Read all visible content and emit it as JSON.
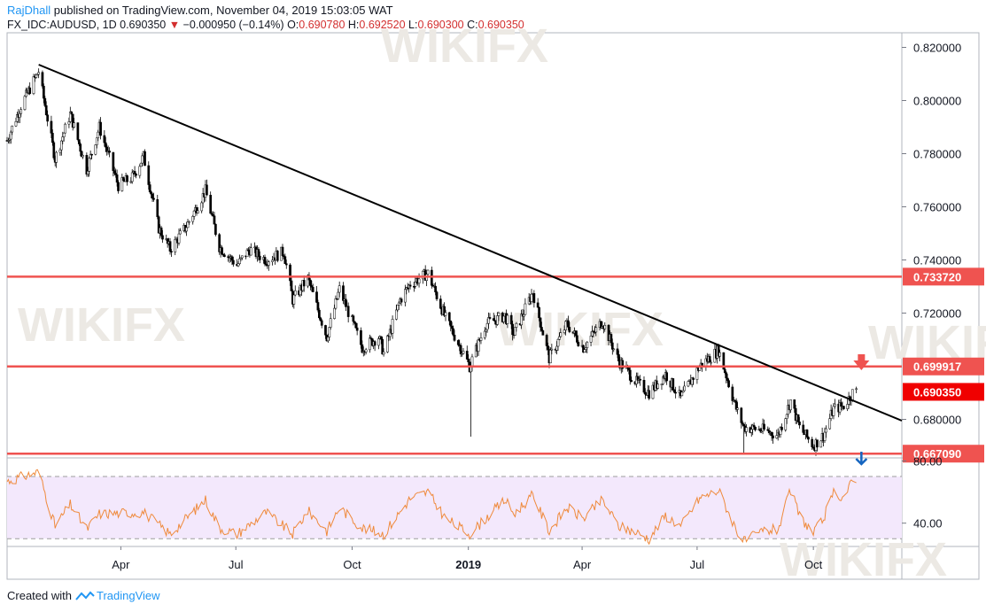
{
  "header": {
    "author": "RajDhall",
    "published": "published on TradingView.com, November 04, 2019 15:03:05 WAT",
    "symbol": "FX_IDC:AUDUSD, 1D",
    "last": "0.690350",
    "change_arrow": "▼",
    "change": "−0.000950 (−0.14%)",
    "o_label": "O:",
    "o": "0.690780",
    "h_label": "H:",
    "h": "0.692520",
    "l_label": "L:",
    "l": "0.690300",
    "c_label": "C:",
    "c": "0.690350"
  },
  "footer": {
    "created_with": "Created with",
    "brand": "TradingView"
  },
  "watermark": "WikiFX",
  "colors": {
    "up": "#ffffff",
    "down": "#000000",
    "wick": "#000000",
    "level_line": "#ef5350",
    "trendline": "#000000",
    "rsi_line": "#ef8a3c",
    "rsi_band": "#f3e8fc",
    "axis_text": "#131722",
    "price_tag": "#ef5350",
    "current_tag": "#f00000",
    "arrow_down_red": "#ef5350",
    "arrow_down_blue": "#1565c0"
  },
  "chart_data": {
    "type": "candlestick",
    "symbol": "FX_IDC:AUDUSD",
    "interval": "1D",
    "x_tick_labels": [
      "Apr",
      "Jul",
      "Oct",
      "2019",
      "Apr",
      "Jul",
      "Oct"
    ],
    "x_tick_dates": [
      "2018-04-01",
      "2018-07-01",
      "2018-10-01",
      "2019-01-01",
      "2019-04-01",
      "2019-07-01",
      "2019-10-01"
    ],
    "x_range": [
      "2018-01-01",
      "2019-12-10"
    ],
    "price_axis": {
      "ticks": [
        "0.820000",
        "0.800000",
        "0.780000",
        "0.760000",
        "0.740000",
        "0.720000",
        "0.680000"
      ],
      "range": [
        0.6655,
        0.8255
      ]
    },
    "horizontal_levels": [
      {
        "price": 0.73372,
        "label": "0.733720"
      },
      {
        "price": 0.699917,
        "label": "0.699917"
      },
      {
        "price": 0.66709,
        "label": "0.667090"
      }
    ],
    "current_price_tag": {
      "price": 0.69035,
      "label": "0.690350"
    },
    "trendline": {
      "start": {
        "date": "2018-01-26",
        "price": 0.8135
      },
      "end": {
        "date": "2019-12-10",
        "price": 0.6795
      }
    },
    "markers": [
      {
        "kind": "arrow-down",
        "pane": "price",
        "date": "2019-11-08",
        "price": 0.7005,
        "color": "red"
      },
      {
        "kind": "arrow-down",
        "pane": "rsi",
        "date": "2019-11-08",
        "value": 78,
        "color": "blue"
      }
    ],
    "price_path": [
      [
        "2018-01-01",
        0.785
      ],
      [
        "2018-01-12",
        0.798
      ],
      [
        "2018-01-26",
        0.811
      ],
      [
        "2018-02-08",
        0.778
      ],
      [
        "2018-02-20",
        0.795
      ],
      [
        "2018-03-05",
        0.774
      ],
      [
        "2018-03-15",
        0.79
      ],
      [
        "2018-03-30",
        0.768
      ],
      [
        "2018-04-10",
        0.771
      ],
      [
        "2018-04-19",
        0.779
      ],
      [
        "2018-05-01",
        0.752
      ],
      [
        "2018-05-10",
        0.744
      ],
      [
        "2018-05-22",
        0.752
      ],
      [
        "2018-06-07",
        0.766
      ],
      [
        "2018-06-18",
        0.745
      ],
      [
        "2018-07-02",
        0.738
      ],
      [
        "2018-07-12",
        0.744
      ],
      [
        "2018-07-25",
        0.74
      ],
      [
        "2018-08-08",
        0.743
      ],
      [
        "2018-08-15",
        0.725
      ],
      [
        "2018-08-27",
        0.733
      ],
      [
        "2018-09-11",
        0.711
      ],
      [
        "2018-09-21",
        0.729
      ],
      [
        "2018-10-09",
        0.707
      ],
      [
        "2018-10-22",
        0.711
      ],
      [
        "2018-10-26",
        0.705
      ],
      [
        "2018-11-08",
        0.725
      ],
      [
        "2018-11-16",
        0.731
      ],
      [
        "2018-11-30",
        0.735
      ],
      [
        "2018-12-14",
        0.718
      ],
      [
        "2018-12-28",
        0.705
      ],
      [
        "2019-01-02",
        0.7
      ],
      [
        "2019-01-15",
        0.716
      ],
      [
        "2019-01-30",
        0.719
      ],
      [
        "2019-02-06",
        0.712
      ],
      [
        "2019-02-21",
        0.728
      ],
      [
        "2019-03-06",
        0.703
      ],
      [
        "2019-03-20",
        0.716
      ],
      [
        "2019-04-02",
        0.707
      ],
      [
        "2019-04-17",
        0.717
      ],
      [
        "2019-04-30",
        0.702
      ],
      [
        "2019-05-14",
        0.694
      ],
      [
        "2019-05-24",
        0.69
      ],
      [
        "2019-06-06",
        0.697
      ],
      [
        "2019-06-18",
        0.688
      ],
      [
        "2019-07-03",
        0.7
      ],
      [
        "2019-07-18",
        0.706
      ],
      [
        "2019-08-01",
        0.684
      ],
      [
        "2019-08-07",
        0.677
      ],
      [
        "2019-08-22",
        0.676
      ],
      [
        "2019-09-03",
        0.674
      ],
      [
        "2019-09-13",
        0.687
      ],
      [
        "2019-09-20",
        0.677
      ],
      [
        "2019-10-01",
        0.67
      ],
      [
        "2019-10-09",
        0.674
      ],
      [
        "2019-10-17",
        0.684
      ],
      [
        "2019-10-25",
        0.685
      ],
      [
        "2019-11-01",
        0.69
      ],
      [
        "2019-11-04",
        0.6904
      ]
    ],
    "price_spikes": [
      {
        "date": "2019-01-03",
        "low": 0.6735
      },
      {
        "date": "2019-08-07",
        "low": 0.6675
      }
    ],
    "rsi": {
      "axis_ticks": [
        "80.00",
        "40.00"
      ],
      "range": [
        25,
        82
      ],
      "band": [
        30,
        70
      ],
      "path": [
        [
          "2018-01-01",
          67
        ],
        [
          "2018-01-26",
          73
        ],
        [
          "2018-02-08",
          38
        ],
        [
          "2018-02-20",
          52
        ],
        [
          "2018-03-05",
          36
        ],
        [
          "2018-03-15",
          46
        ],
        [
          "2018-04-19",
          47
        ],
        [
          "2018-05-10",
          33
        ],
        [
          "2018-06-07",
          55
        ],
        [
          "2018-06-18",
          37
        ],
        [
          "2018-07-02",
          33
        ],
        [
          "2018-07-25",
          47
        ],
        [
          "2018-08-15",
          33
        ],
        [
          "2018-08-27",
          48
        ],
        [
          "2018-09-11",
          35
        ],
        [
          "2018-09-21",
          50
        ],
        [
          "2018-10-09",
          37
        ],
        [
          "2018-10-26",
          33
        ],
        [
          "2018-11-16",
          56
        ],
        [
          "2018-11-30",
          60
        ],
        [
          "2018-12-14",
          43
        ],
        [
          "2019-01-02",
          33
        ],
        [
          "2019-01-30",
          55
        ],
        [
          "2019-02-06",
          46
        ],
        [
          "2019-02-21",
          58
        ],
        [
          "2019-03-06",
          35
        ],
        [
          "2019-03-20",
          50
        ],
        [
          "2019-04-02",
          43
        ],
        [
          "2019-04-17",
          55
        ],
        [
          "2019-04-30",
          38
        ],
        [
          "2019-05-14",
          34
        ],
        [
          "2019-05-24",
          30
        ],
        [
          "2019-06-06",
          45
        ],
        [
          "2019-06-18",
          38
        ],
        [
          "2019-07-03",
          56
        ],
        [
          "2019-07-18",
          61
        ],
        [
          "2019-08-01",
          36
        ],
        [
          "2019-08-07",
          28
        ],
        [
          "2019-08-22",
          35
        ],
        [
          "2019-09-03",
          36
        ],
        [
          "2019-09-13",
          61
        ],
        [
          "2019-09-20",
          45
        ],
        [
          "2019-10-01",
          33
        ],
        [
          "2019-10-09",
          43
        ],
        [
          "2019-10-17",
          59
        ],
        [
          "2019-10-25",
          57
        ],
        [
          "2019-11-01",
          67
        ],
        [
          "2019-11-04",
          66
        ]
      ]
    }
  }
}
